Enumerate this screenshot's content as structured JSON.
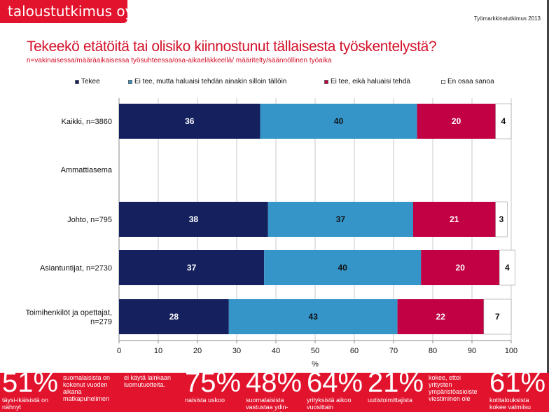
{
  "header": {
    "logo": "taloustutkimus oy",
    "study": "Työmarkkinatutkimus 2013"
  },
  "title": "Tekeekö etätöitä tai olisiko kiinnostunut tällaisesta työskentelystä?",
  "subtitle": "n=vakinaisessa/määräaikaisessa työsuhteessa/osa-aikaeläkkeellä/ määritelty/säännöllinen työaika",
  "chart_data": {
    "type": "bar",
    "orientation": "horizontal",
    "stacked": true,
    "categories": [
      "Kaikki, n=3860",
      "Ammattiasema",
      "Johto, n=795",
      "Asiantuntijat, n=2730",
      "Toimihenkilöt ja opettajat, n=279"
    ],
    "series": [
      {
        "name": "Tekee",
        "color": "#15205e",
        "label_color": "#ffffff",
        "values": [
          36,
          null,
          38,
          37,
          28
        ]
      },
      {
        "name": "Ei tee, mutta haluaisi tehdän ainakin silloin tällöin",
        "color": "#3595c9",
        "label_color": "#111111",
        "values": [
          40,
          null,
          37,
          40,
          43
        ]
      },
      {
        "name": "Ei tee, eikä haluaisi tehdä",
        "color": "#c20044",
        "label_color": "#ffffff",
        "values": [
          20,
          null,
          21,
          20,
          22
        ]
      },
      {
        "name": "En osaa sanoa",
        "color": "#ffffff",
        "label_color": "#111111",
        "values": [
          4,
          null,
          3,
          4,
          7
        ]
      }
    ],
    "xlabel": "%",
    "xlim": [
      0,
      100
    ],
    "xticks": [
      0,
      10,
      20,
      30,
      40,
      50,
      60,
      70,
      80,
      90,
      100
    ],
    "legend": "top",
    "grid": true
  },
  "footer": {
    "stats": [
      {
        "big": "51%",
        "text": "täysi-ikäisistä on nähnyt"
      },
      {
        "big": "",
        "text": "suomalaisista on kokenut vuoden aikana matkapuhelimen"
      },
      {
        "big": "",
        "text": "ei käytä lainkaan luomutuotteita."
      },
      {
        "big": "75%",
        "text": "naisista uskoo"
      },
      {
        "big": "48%",
        "text": "suomalaisista vastustaa ydin-voiman käytön"
      },
      {
        "big": "64%",
        "text": "yrityksistä aikoo vuosittain"
      },
      {
        "big": "21%",
        "text": "uutistoimittajista"
      },
      {
        "big": "",
        "text": "kokee, ettei yritysten ympäristöasioiste viestiminen ole"
      },
      {
        "big": "61%",
        "text": "kotitalouksista kokee valmiisu"
      }
    ]
  }
}
